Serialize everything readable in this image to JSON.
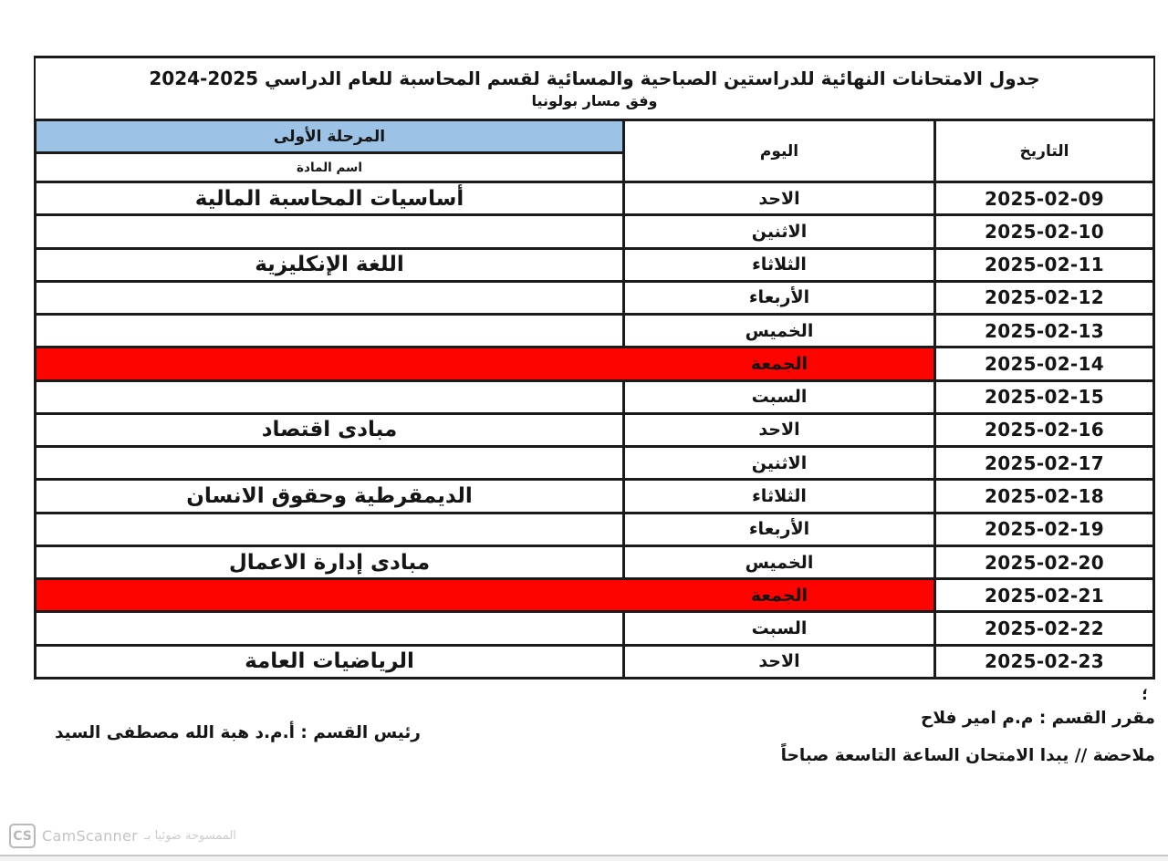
{
  "title": {
    "line1": "جدول الامتحانات النهائية للدراستين الصباحية والمسائية لقسم المحاسبة للعام الدراسي 2025-2024",
    "line2": "وفق مسار بولونيا"
  },
  "table": {
    "stage_header": "المرحلة الأولى",
    "subject_header": "اسم المادة",
    "day_header": "اليوم",
    "date_header": "التاريخ",
    "rows": [
      {
        "subject": "أساسيات المحاسبة المالية",
        "day": "الاحد",
        "date": "2025-02-09",
        "highlight": false
      },
      {
        "subject": "",
        "day": "الاثنين",
        "date": "2025-02-10",
        "highlight": false
      },
      {
        "subject": "اللغة الإنكليزية",
        "day": "الثلاثاء",
        "date": "2025-02-11",
        "highlight": false
      },
      {
        "subject": "",
        "day": "الأربعاء",
        "date": "2025-02-12",
        "highlight": false
      },
      {
        "subject": "",
        "day": "الخميس",
        "date": "2025-02-13",
        "highlight": false
      },
      {
        "subject": "",
        "day": "الجمعة",
        "date": "2025-02-14",
        "highlight": true
      },
      {
        "subject": "",
        "day": "السبت",
        "date": "2025-02-15",
        "highlight": false
      },
      {
        "subject": "مبادى اقتصاد",
        "day": "الاحد",
        "date": "2025-02-16",
        "highlight": false
      },
      {
        "subject": "",
        "day": "الاثنين",
        "date": "2025-02-17",
        "highlight": false
      },
      {
        "subject": "الديمقرطية وحقوق الانسان",
        "day": "الثلاثاء",
        "date": "2025-02-18",
        "highlight": false
      },
      {
        "subject": "",
        "day": "الأربعاء",
        "date": "2025-02-19",
        "highlight": false
      },
      {
        "subject": "مبادى إدارة الاعمال",
        "day": "الخميس",
        "date": "2025-02-20",
        "highlight": false
      },
      {
        "subject": "",
        "day": "الجمعة",
        "date": "2025-02-21",
        "highlight": true
      },
      {
        "subject": "",
        "day": "السبت",
        "date": "2025-02-22",
        "highlight": false
      },
      {
        "subject": "الرياضيات العامة",
        "day": "الاحد",
        "date": "2025-02-23",
        "highlight": false
      }
    ]
  },
  "footer": {
    "mark": "؛",
    "coordinator": "مقرر القسم : م.م امير فلاح",
    "note": "ملاحضة // يبدا الامتحان الساعة التاسعة صباحاً",
    "department_head": "رئيس القسم : أ.م.د هبة الله مصطفى السيد"
  },
  "watermark": {
    "logo": "CS",
    "brand": "CamScanner",
    "arabic_text": "الممسوحة ضوئيا بـ"
  },
  "colors": {
    "stage_header_bg": "#9CC2E5",
    "holiday_bg": "#FE0400",
    "border": "#1B1B1B"
  }
}
